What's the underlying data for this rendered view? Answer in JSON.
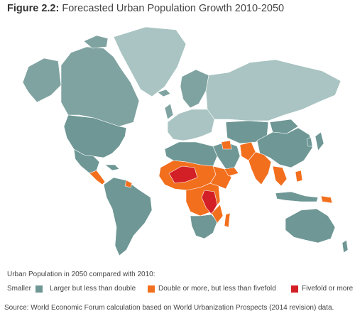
{
  "title": {
    "prefix": "Figure 2.2:",
    "text": "Forecasted Urban Population Growth 2010-2050"
  },
  "colors": {
    "smaller": "#a9c4c2",
    "larger": "#6e9795",
    "double": "#f26f1e",
    "fivefold": "#d32027",
    "land_light": "#a9c4c2",
    "land_mid": "#7fa3a1",
    "border": "#ffffff"
  },
  "legend": {
    "heading": "Urban Population in 2050 compared with 2010:",
    "items": [
      {
        "label": "Smaller",
        "color": "#a9c4c2"
      },
      {
        "label": "Larger but less than double",
        "color": "#6e9795"
      },
      {
        "label": "Double or more, but less than fivefold",
        "color": "#f26f1e"
      },
      {
        "label": "Fivefold or more",
        "color": "#d32027"
      }
    ]
  },
  "source": "Source: World Economic Forum calculation based on World Urbanization Prospects (2014 revision) data."
}
